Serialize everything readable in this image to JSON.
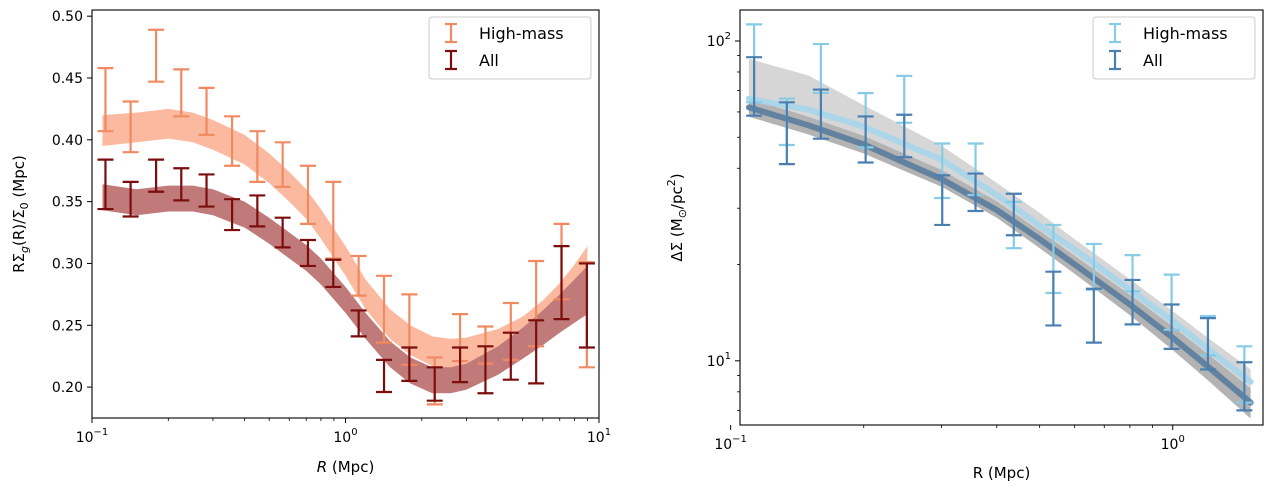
{
  "chart_data": [
    {
      "type": "line",
      "xlabel_italic": "R",
      "xlabel_rest": " (Mpc)",
      "ylabel_text": "RΣ",
      "ylabel_sub": "g",
      "ylabel_mid": "(R)/Σ",
      "ylabel_sub2": "0",
      "ylabel_end": " (Mpc)",
      "xscale": "log",
      "yscale": "linear",
      "xlim": [
        0.1,
        10
      ],
      "ylim": [
        0.175,
        0.505
      ],
      "x_ticks": [
        {
          "v": 0.1,
          "base": "10",
          "exp": "−1"
        },
        {
          "v": 1,
          "base": "10",
          "exp": "0"
        },
        {
          "v": 10,
          "base": "10",
          "exp": "1"
        }
      ],
      "y_ticks": [
        {
          "v": 0.2,
          "label": "0.20"
        },
        {
          "v": 0.25,
          "label": "0.25"
        },
        {
          "v": 0.3,
          "label": "0.30"
        },
        {
          "v": 0.35,
          "label": "0.35"
        },
        {
          "v": 0.4,
          "label": "0.40"
        },
        {
          "v": 0.45,
          "label": "0.45"
        },
        {
          "v": 0.5,
          "label": "0.50"
        }
      ],
      "legend": {
        "position": "upper right"
      },
      "series": [
        {
          "name": "High-mass",
          "color": "#f08a62",
          "band_color": "#fbbaa0",
          "points": [
            {
              "x": 0.113,
              "lo": 0.407,
              "hi": 0.458
            },
            {
              "x": 0.142,
              "lo": 0.39,
              "hi": 0.431
            },
            {
              "x": 0.179,
              "lo": 0.447,
              "hi": 0.489
            },
            {
              "x": 0.225,
              "lo": 0.419,
              "hi": 0.457
            },
            {
              "x": 0.283,
              "lo": 0.404,
              "hi": 0.442
            },
            {
              "x": 0.357,
              "lo": 0.379,
              "hi": 0.419
            },
            {
              "x": 0.449,
              "lo": 0.366,
              "hi": 0.407
            },
            {
              "x": 0.565,
              "lo": 0.362,
              "hi": 0.398
            },
            {
              "x": 0.711,
              "lo": 0.332,
              "hi": 0.379
            },
            {
              "x": 0.895,
              "lo": 0.304,
              "hi": 0.366
            },
            {
              "x": 1.127,
              "lo": 0.274,
              "hi": 0.306
            },
            {
              "x": 1.419,
              "lo": 0.236,
              "hi": 0.29
            },
            {
              "x": 1.786,
              "lo": 0.218,
              "hi": 0.275
            },
            {
              "x": 2.249,
              "lo": 0.186,
              "hi": 0.224
            },
            {
              "x": 2.831,
              "lo": 0.221,
              "hi": 0.259
            },
            {
              "x": 3.565,
              "lo": 0.219,
              "hi": 0.249
            },
            {
              "x": 4.488,
              "lo": 0.222,
              "hi": 0.268
            },
            {
              "x": 5.651,
              "lo": 0.233,
              "hi": 0.302
            },
            {
              "x": 7.114,
              "lo": 0.271,
              "hi": 0.332
            },
            {
              "x": 8.957,
              "lo": 0.216,
              "hi": 0.301
            }
          ],
          "band": [
            {
              "x": 0.11,
              "lo": 0.395,
              "hi": 0.42
            },
            {
              "x": 0.15,
              "lo": 0.398,
              "hi": 0.422
            },
            {
              "x": 0.2,
              "lo": 0.401,
              "hi": 0.425
            },
            {
              "x": 0.25,
              "lo": 0.398,
              "hi": 0.422
            },
            {
              "x": 0.3,
              "lo": 0.392,
              "hi": 0.416
            },
            {
              "x": 0.4,
              "lo": 0.38,
              "hi": 0.404
            },
            {
              "x": 0.5,
              "lo": 0.365,
              "hi": 0.389
            },
            {
              "x": 0.6,
              "lo": 0.35,
              "hi": 0.374
            },
            {
              "x": 0.7,
              "lo": 0.336,
              "hi": 0.36
            },
            {
              "x": 0.8,
              "lo": 0.32,
              "hi": 0.344
            },
            {
              "x": 1.0,
              "lo": 0.29,
              "hi": 0.314
            },
            {
              "x": 1.2,
              "lo": 0.263,
              "hi": 0.287
            },
            {
              "x": 1.5,
              "lo": 0.239,
              "hi": 0.263
            },
            {
              "x": 1.8,
              "lo": 0.226,
              "hi": 0.25
            },
            {
              "x": 2.2,
              "lo": 0.217,
              "hi": 0.241
            },
            {
              "x": 2.6,
              "lo": 0.215,
              "hi": 0.239
            },
            {
              "x": 3.0,
              "lo": 0.216,
              "hi": 0.24
            },
            {
              "x": 4.0,
              "lo": 0.221,
              "hi": 0.247
            },
            {
              "x": 5.0,
              "lo": 0.229,
              "hi": 0.257
            },
            {
              "x": 6.0,
              "lo": 0.238,
              "hi": 0.27
            },
            {
              "x": 7.0,
              "lo": 0.248,
              "hi": 0.284
            },
            {
              "x": 8.0,
              "lo": 0.257,
              "hi": 0.299
            },
            {
              "x": 9.0,
              "lo": 0.265,
              "hi": 0.314
            }
          ]
        },
        {
          "name": "All",
          "color": "#7b0d0d",
          "band_color": "#c07a7a",
          "points": [
            {
              "x": 0.113,
              "lo": 0.344,
              "hi": 0.384
            },
            {
              "x": 0.142,
              "lo": 0.338,
              "hi": 0.366
            },
            {
              "x": 0.179,
              "lo": 0.358,
              "hi": 0.384
            },
            {
              "x": 0.225,
              "lo": 0.351,
              "hi": 0.377
            },
            {
              "x": 0.283,
              "lo": 0.346,
              "hi": 0.372
            },
            {
              "x": 0.357,
              "lo": 0.327,
              "hi": 0.352
            },
            {
              "x": 0.449,
              "lo": 0.33,
              "hi": 0.355
            },
            {
              "x": 0.565,
              "lo": 0.313,
              "hi": 0.337
            },
            {
              "x": 0.711,
              "lo": 0.298,
              "hi": 0.319
            },
            {
              "x": 0.895,
              "lo": 0.281,
              "hi": 0.303
            },
            {
              "x": 1.127,
              "lo": 0.241,
              "hi": 0.262
            },
            {
              "x": 1.419,
              "lo": 0.196,
              "hi": 0.222
            },
            {
              "x": 1.786,
              "lo": 0.205,
              "hi": 0.232
            },
            {
              "x": 2.249,
              "lo": 0.189,
              "hi": 0.216
            },
            {
              "x": 2.831,
              "lo": 0.204,
              "hi": 0.232
            },
            {
              "x": 3.565,
              "lo": 0.195,
              "hi": 0.233
            },
            {
              "x": 4.488,
              "lo": 0.206,
              "hi": 0.244
            },
            {
              "x": 5.651,
              "lo": 0.203,
              "hi": 0.254
            },
            {
              "x": 7.114,
              "lo": 0.255,
              "hi": 0.314
            },
            {
              "x": 8.957,
              "lo": 0.232,
              "hi": 0.3
            }
          ],
          "band": [
            {
              "x": 0.11,
              "lo": 0.343,
              "hi": 0.364
            },
            {
              "x": 0.15,
              "lo": 0.339,
              "hi": 0.36
            },
            {
              "x": 0.2,
              "lo": 0.342,
              "hi": 0.363
            },
            {
              "x": 0.25,
              "lo": 0.342,
              "hi": 0.363
            },
            {
              "x": 0.3,
              "lo": 0.339,
              "hi": 0.36
            },
            {
              "x": 0.4,
              "lo": 0.329,
              "hi": 0.35
            },
            {
              "x": 0.5,
              "lo": 0.316,
              "hi": 0.337
            },
            {
              "x": 0.6,
              "lo": 0.304,
              "hi": 0.325
            },
            {
              "x": 0.7,
              "lo": 0.294,
              "hi": 0.315
            },
            {
              "x": 0.8,
              "lo": 0.283,
              "hi": 0.304
            },
            {
              "x": 1.0,
              "lo": 0.26,
              "hi": 0.281
            },
            {
              "x": 1.2,
              "lo": 0.239,
              "hi": 0.26
            },
            {
              "x": 1.5,
              "lo": 0.216,
              "hi": 0.237
            },
            {
              "x": 1.8,
              "lo": 0.203,
              "hi": 0.224
            },
            {
              "x": 2.2,
              "lo": 0.195,
              "hi": 0.216
            },
            {
              "x": 2.6,
              "lo": 0.195,
              "hi": 0.216
            },
            {
              "x": 3.0,
              "lo": 0.198,
              "hi": 0.219
            },
            {
              "x": 4.0,
              "lo": 0.21,
              "hi": 0.233
            },
            {
              "x": 5.0,
              "lo": 0.223,
              "hi": 0.248
            },
            {
              "x": 6.0,
              "lo": 0.234,
              "hi": 0.262
            },
            {
              "x": 7.0,
              "lo": 0.244,
              "hi": 0.275
            },
            {
              "x": 8.0,
              "lo": 0.252,
              "hi": 0.287
            },
            {
              "x": 9.0,
              "lo": 0.259,
              "hi": 0.298
            }
          ]
        }
      ]
    },
    {
      "type": "line",
      "xlabel": "R (Mpc)",
      "ylabel_text": "ΔΣ (M",
      "ylabel_sun": "⊙",
      "ylabel_mid": "/pc",
      "ylabel_sup": "2",
      "ylabel_end": ")",
      "xscale": "log",
      "yscale": "log",
      "xlim": [
        0.105,
        1.6
      ],
      "ylim": [
        6.3,
        125
      ],
      "x_ticks": [
        {
          "v": 0.1,
          "base": "10",
          "exp": "−1"
        },
        {
          "v": 1,
          "base": "10",
          "exp": "0"
        }
      ],
      "y_ticks": [
        {
          "v": 10,
          "base": "10",
          "exp": "1"
        },
        {
          "v": 100,
          "base": "10",
          "exp": "2"
        }
      ],
      "legend": {
        "position": "upper right"
      },
      "series": [
        {
          "name": "High-mass",
          "color": "#87cbe6",
          "line_color": "#a9d6eb",
          "band_color": "#d6d6d6",
          "points": [
            {
              "x": 0.113,
              "lo": 64.3,
              "hi": 112.7
            },
            {
              "x": 0.134,
              "lo": 47.3,
              "hi": 66.0
            },
            {
              "x": 0.16,
              "lo": 68.8,
              "hi": 97.8
            },
            {
              "x": 0.202,
              "lo": 46.5,
              "hi": 68.7
            },
            {
              "x": 0.247,
              "lo": 55.5,
              "hi": 77.8
            },
            {
              "x": 0.301,
              "lo": 32.3,
              "hi": 47.8
            },
            {
              "x": 0.358,
              "lo": 33.0,
              "hi": 47.8
            },
            {
              "x": 0.437,
              "lo": 22.5,
              "hi": 31.4
            },
            {
              "x": 0.537,
              "lo": 16.3,
              "hi": 26.6
            },
            {
              "x": 0.663,
              "lo": 16.7,
              "hi": 23.2
            },
            {
              "x": 0.811,
              "lo": 16.5,
              "hi": 21.4
            },
            {
              "x": 0.994,
              "lo": 12.5,
              "hi": 18.6
            },
            {
              "x": 1.201,
              "lo": 10.4,
              "hi": 13.8
            },
            {
              "x": 1.452,
              "lo": 7.4,
              "hi": 11.1
            }
          ],
          "band": [
            {
              "x": 0.11,
              "lo": 58,
              "hi": 88
            },
            {
              "x": 0.15,
              "lo": 54,
              "hi": 78
            },
            {
              "x": 0.2,
              "lo": 47,
              "hi": 63
            },
            {
              "x": 0.3,
              "lo": 37,
              "hi": 47
            },
            {
              "x": 0.4,
              "lo": 29.5,
              "hi": 36
            },
            {
              "x": 0.5,
              "lo": 24,
              "hi": 29
            },
            {
              "x": 0.6,
              "lo": 20.5,
              "hi": 24
            },
            {
              "x": 0.8,
              "lo": 15.5,
              "hi": 18
            },
            {
              "x": 1.0,
              "lo": 12.3,
              "hi": 14.3
            },
            {
              "x": 1.2,
              "lo": 10.1,
              "hi": 11.8
            },
            {
              "x": 1.5,
              "lo": 7.8,
              "hi": 9.4
            }
          ],
          "line": [
            {
              "x": 0.11,
              "y": 66
            },
            {
              "x": 0.15,
              "y": 61
            },
            {
              "x": 0.2,
              "y": 54
            },
            {
              "x": 0.3,
              "y": 42.5
            },
            {
              "x": 0.4,
              "y": 33
            },
            {
              "x": 0.5,
              "y": 26.5
            },
            {
              "x": 0.6,
              "y": 22.3
            },
            {
              "x": 0.8,
              "y": 16.7
            },
            {
              "x": 1.0,
              "y": 13.3
            },
            {
              "x": 1.2,
              "y": 10.9
            },
            {
              "x": 1.5,
              "y": 8.6
            }
          ]
        },
        {
          "name": "All",
          "color": "#4a7fb0",
          "line_color": "#5f7f9e",
          "band_color": "#b3b3b3",
          "points": [
            {
              "x": 0.113,
              "lo": 58.4,
              "hi": 89.0
            },
            {
              "x": 0.134,
              "lo": 41.2,
              "hi": 64.3
            },
            {
              "x": 0.16,
              "lo": 49.5,
              "hi": 70.5
            },
            {
              "x": 0.202,
              "lo": 41.7,
              "hi": 58.1
            },
            {
              "x": 0.247,
              "lo": 43.3,
              "hi": 58.8
            },
            {
              "x": 0.301,
              "lo": 26.6,
              "hi": 38.0
            },
            {
              "x": 0.358,
              "lo": 29.4,
              "hi": 38.5
            },
            {
              "x": 0.437,
              "lo": 24.7,
              "hi": 33.3
            },
            {
              "x": 0.537,
              "lo": 12.9,
              "hi": 19.0
            },
            {
              "x": 0.663,
              "lo": 11.4,
              "hi": 16.8
            },
            {
              "x": 0.811,
              "lo": 13.0,
              "hi": 17.9
            },
            {
              "x": 0.994,
              "lo": 10.9,
              "hi": 15.0
            },
            {
              "x": 1.201,
              "lo": 9.4,
              "hi": 13.6
            },
            {
              "x": 1.452,
              "lo": 7.0,
              "hi": 9.9
            }
          ],
          "band": [
            {
              "x": 0.11,
              "lo": 58,
              "hi": 66
            },
            {
              "x": 0.15,
              "lo": 51,
              "hi": 58
            },
            {
              "x": 0.2,
              "lo": 44.5,
              "hi": 50.5
            },
            {
              "x": 0.3,
              "lo": 35,
              "hi": 39.5
            },
            {
              "x": 0.4,
              "lo": 28,
              "hi": 31.5
            },
            {
              "x": 0.5,
              "lo": 22.5,
              "hi": 25.5
            },
            {
              "x": 0.6,
              "lo": 18.7,
              "hi": 21.3
            },
            {
              "x": 0.8,
              "lo": 13.9,
              "hi": 16.1
            },
            {
              "x": 1.0,
              "lo": 10.8,
              "hi": 12.8
            },
            {
              "x": 1.2,
              "lo": 8.7,
              "hi": 10.5
            },
            {
              "x": 1.5,
              "lo": 6.6,
              "hi": 8.2
            }
          ],
          "line": [
            {
              "x": 0.11,
              "y": 62
            },
            {
              "x": 0.15,
              "y": 54.5
            },
            {
              "x": 0.2,
              "y": 47.5
            },
            {
              "x": 0.3,
              "y": 37
            },
            {
              "x": 0.4,
              "y": 29.6
            },
            {
              "x": 0.5,
              "y": 24
            },
            {
              "x": 0.6,
              "y": 20
            },
            {
              "x": 0.8,
              "y": 15
            },
            {
              "x": 1.0,
              "y": 11.8
            },
            {
              "x": 1.2,
              "y": 9.6
            },
            {
              "x": 1.5,
              "y": 7.4
            }
          ]
        }
      ]
    }
  ]
}
